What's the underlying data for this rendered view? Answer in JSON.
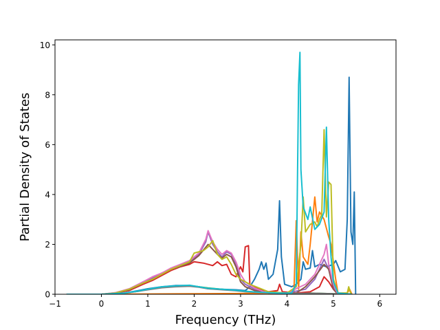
{
  "chart_data": {
    "type": "line",
    "title": "",
    "xlabel": "Frequency (THz)",
    "ylabel": "Partial Density of States",
    "xlim": [
      -1.0,
      6.35
    ],
    "ylim": [
      0,
      10.2
    ],
    "xticks": [
      -1,
      0,
      1,
      2,
      3,
      4,
      5,
      6
    ],
    "yticks": [
      0,
      2,
      4,
      6,
      8,
      10
    ],
    "xtick_labels": [
      "−1",
      "0",
      "1",
      "2",
      "3",
      "4",
      "5",
      "6"
    ],
    "ytick_labels": [
      "0",
      "2",
      "4",
      "6",
      "8",
      "10"
    ],
    "grid": false,
    "legend": "none",
    "series": [
      {
        "color": "#1f77b4",
        "points": [
          [
            -0.75,
            0
          ],
          [
            0.0,
            0
          ],
          [
            0.5,
            0.05
          ],
          [
            0.8,
            0.15
          ],
          [
            1.0,
            0.22
          ],
          [
            1.3,
            0.3
          ],
          [
            1.6,
            0.35
          ],
          [
            1.9,
            0.35
          ],
          [
            2.1,
            0.3
          ],
          [
            2.3,
            0.22
          ],
          [
            2.6,
            0.2
          ],
          [
            2.9,
            0.18
          ],
          [
            3.1,
            0.15
          ],
          [
            3.2,
            0.3
          ],
          [
            3.3,
            0.6
          ],
          [
            3.4,
            1.0
          ],
          [
            3.45,
            1.3
          ],
          [
            3.5,
            1.0
          ],
          [
            3.55,
            1.25
          ],
          [
            3.6,
            0.6
          ],
          [
            3.7,
            0.8
          ],
          [
            3.8,
            1.8
          ],
          [
            3.84,
            3.75
          ],
          [
            3.88,
            1.5
          ],
          [
            3.95,
            0.4
          ],
          [
            4.1,
            0.3
          ],
          [
            4.2,
            0.4
          ],
          [
            4.3,
            0.6
          ],
          [
            4.35,
            1.3
          ],
          [
            4.4,
            1.0
          ],
          [
            4.5,
            1.05
          ],
          [
            4.55,
            1.75
          ],
          [
            4.6,
            1.1
          ],
          [
            4.7,
            1.2
          ],
          [
            4.85,
            1.1
          ],
          [
            5.0,
            1.2
          ],
          [
            5.05,
            1.35
          ],
          [
            5.15,
            0.9
          ],
          [
            5.25,
            1.0
          ],
          [
            5.3,
            3.0
          ],
          [
            5.34,
            8.7
          ],
          [
            5.38,
            2.5
          ],
          [
            5.42,
            2.0
          ],
          [
            5.45,
            4.1
          ],
          [
            5.48,
            0
          ]
        ]
      },
      {
        "color": "#ff7f0e",
        "points": [
          [
            -0.75,
            0
          ],
          [
            0.0,
            0
          ],
          [
            1.0,
            0.01
          ],
          [
            2.0,
            0.02
          ],
          [
            3.0,
            0.03
          ],
          [
            3.8,
            0.05
          ],
          [
            4.15,
            0.1
          ],
          [
            4.2,
            2.95
          ],
          [
            4.25,
            0.2
          ],
          [
            4.3,
            2.5
          ],
          [
            4.35,
            1.5
          ],
          [
            4.45,
            1.2
          ],
          [
            4.5,
            2.0
          ],
          [
            4.6,
            3.9
          ],
          [
            4.65,
            2.9
          ],
          [
            4.7,
            3.3
          ],
          [
            4.8,
            3.0
          ],
          [
            4.9,
            2.3
          ],
          [
            4.95,
            2.0
          ],
          [
            5.05,
            0.6
          ],
          [
            5.1,
            0.05
          ],
          [
            5.3,
            0.05
          ],
          [
            5.35,
            0.2
          ],
          [
            5.4,
            0
          ]
        ]
      },
      {
        "color": "#2ca02c",
        "points": [
          [
            -0.75,
            0
          ],
          [
            0.0,
            0
          ],
          [
            0.5,
            0.05
          ],
          [
            0.8,
            0.12
          ],
          [
            1.0,
            0.2
          ],
          [
            1.3,
            0.28
          ],
          [
            1.6,
            0.32
          ],
          [
            1.9,
            0.34
          ],
          [
            2.1,
            0.3
          ],
          [
            2.3,
            0.25
          ],
          [
            2.6,
            0.2
          ],
          [
            2.9,
            0.15
          ],
          [
            3.1,
            0.12
          ],
          [
            3.4,
            0.08
          ],
          [
            3.8,
            0.05
          ],
          [
            4.2,
            0.03
          ],
          [
            4.5,
            0.05
          ],
          [
            5.0,
            0.02
          ],
          [
            5.4,
            0
          ]
        ]
      },
      {
        "color": "#d62728",
        "points": [
          [
            -0.75,
            0
          ],
          [
            0.0,
            0
          ],
          [
            0.3,
            0.05
          ],
          [
            0.6,
            0.15
          ],
          [
            0.9,
            0.4
          ],
          [
            1.1,
            0.55
          ],
          [
            1.3,
            0.75
          ],
          [
            1.5,
            0.95
          ],
          [
            1.7,
            1.1
          ],
          [
            1.9,
            1.2
          ],
          [
            2.0,
            1.3
          ],
          [
            2.2,
            1.25
          ],
          [
            2.4,
            1.15
          ],
          [
            2.5,
            1.3
          ],
          [
            2.6,
            1.15
          ],
          [
            2.7,
            1.2
          ],
          [
            2.8,
            0.8
          ],
          [
            2.9,
            0.7
          ],
          [
            3.0,
            1.1
          ],
          [
            3.05,
            0.9
          ],
          [
            3.1,
            1.9
          ],
          [
            3.17,
            1.95
          ],
          [
            3.2,
            0.4
          ],
          [
            3.4,
            0.2
          ],
          [
            3.6,
            0.1
          ],
          [
            3.8,
            0.15
          ],
          [
            3.84,
            0.4
          ],
          [
            3.9,
            0.1
          ],
          [
            4.2,
            0.05
          ],
          [
            4.5,
            0.1
          ],
          [
            4.7,
            0.3
          ],
          [
            4.8,
            0.7
          ],
          [
            4.9,
            0.5
          ],
          [
            5.0,
            0.2
          ],
          [
            5.1,
            0
          ]
        ]
      },
      {
        "color": "#9467bd",
        "points": [
          [
            -0.75,
            0
          ],
          [
            0.0,
            0
          ],
          [
            0.3,
            0.06
          ],
          [
            0.6,
            0.2
          ],
          [
            0.9,
            0.5
          ],
          [
            1.1,
            0.65
          ],
          [
            1.3,
            0.85
          ],
          [
            1.5,
            1.0
          ],
          [
            1.7,
            1.15
          ],
          [
            1.9,
            1.3
          ],
          [
            2.1,
            1.6
          ],
          [
            2.25,
            2.1
          ],
          [
            2.3,
            2.5
          ],
          [
            2.4,
            2.0
          ],
          [
            2.5,
            1.7
          ],
          [
            2.6,
            1.5
          ],
          [
            2.7,
            1.7
          ],
          [
            2.8,
            1.6
          ],
          [
            2.9,
            1.2
          ],
          [
            3.0,
            0.6
          ],
          [
            3.1,
            0.4
          ],
          [
            3.3,
            0.2
          ],
          [
            3.5,
            0.1
          ],
          [
            4.0,
            0.05
          ],
          [
            4.4,
            0.2
          ],
          [
            4.6,
            0.6
          ],
          [
            4.8,
            1.4
          ],
          [
            4.9,
            1.0
          ],
          [
            5.0,
            0.3
          ],
          [
            5.1,
            0
          ]
        ]
      },
      {
        "color": "#8c564b",
        "points": [
          [
            -0.75,
            0
          ],
          [
            0.0,
            0
          ],
          [
            0.3,
            0.05
          ],
          [
            0.6,
            0.18
          ],
          [
            0.9,
            0.45
          ],
          [
            1.1,
            0.6
          ],
          [
            1.3,
            0.8
          ],
          [
            1.5,
            1.0
          ],
          [
            1.7,
            1.12
          ],
          [
            1.9,
            1.25
          ],
          [
            2.1,
            1.55
          ],
          [
            2.3,
            2.0
          ],
          [
            2.4,
            1.8
          ],
          [
            2.5,
            1.6
          ],
          [
            2.6,
            1.45
          ],
          [
            2.7,
            1.6
          ],
          [
            2.8,
            1.5
          ],
          [
            2.9,
            1.1
          ],
          [
            3.0,
            0.5
          ],
          [
            3.1,
            0.3
          ],
          [
            3.3,
            0.15
          ],
          [
            3.6,
            0.05
          ],
          [
            4.2,
            0.05
          ],
          [
            4.4,
            0.3
          ],
          [
            4.6,
            0.7
          ],
          [
            4.8,
            1.2
          ],
          [
            4.9,
            1.0
          ],
          [
            5.0,
            0.2
          ],
          [
            5.1,
            0
          ]
        ]
      },
      {
        "color": "#e377c2",
        "points": [
          [
            -0.75,
            0
          ],
          [
            0.0,
            0
          ],
          [
            0.3,
            0.06
          ],
          [
            0.6,
            0.22
          ],
          [
            0.9,
            0.5
          ],
          [
            1.1,
            0.7
          ],
          [
            1.3,
            0.85
          ],
          [
            1.5,
            1.05
          ],
          [
            1.7,
            1.2
          ],
          [
            1.9,
            1.35
          ],
          [
            2.1,
            1.65
          ],
          [
            2.25,
            2.2
          ],
          [
            2.3,
            2.55
          ],
          [
            2.4,
            2.1
          ],
          [
            2.5,
            1.8
          ],
          [
            2.6,
            1.6
          ],
          [
            2.7,
            1.75
          ],
          [
            2.8,
            1.65
          ],
          [
            2.9,
            1.3
          ],
          [
            3.0,
            0.8
          ],
          [
            3.1,
            0.5
          ],
          [
            3.3,
            0.25
          ],
          [
            3.5,
            0.1
          ],
          [
            4.0,
            0.05
          ],
          [
            4.4,
            0.4
          ],
          [
            4.6,
            0.8
          ],
          [
            4.8,
            1.6
          ],
          [
            4.85,
            2.0
          ],
          [
            4.9,
            1.2
          ],
          [
            5.0,
            0.4
          ],
          [
            5.1,
            0
          ]
        ]
      },
      {
        "color": "#7f7f7f",
        "points": [
          [
            -0.75,
            0
          ],
          [
            0.0,
            0
          ],
          [
            0.5,
            0.04
          ],
          [
            0.8,
            0.12
          ],
          [
            1.0,
            0.18
          ],
          [
            1.3,
            0.26
          ],
          [
            1.6,
            0.3
          ],
          [
            1.9,
            0.32
          ],
          [
            2.1,
            0.28
          ],
          [
            2.3,
            0.22
          ],
          [
            2.6,
            0.18
          ],
          [
            2.9,
            0.14
          ],
          [
            3.1,
            0.1
          ],
          [
            3.4,
            0.07
          ],
          [
            3.8,
            0.05
          ],
          [
            4.2,
            0.03
          ],
          [
            4.6,
            0.04
          ],
          [
            5.0,
            0.02
          ],
          [
            5.4,
            0
          ]
        ]
      },
      {
        "color": "#bcbd22",
        "points": [
          [
            -0.75,
            0
          ],
          [
            0.0,
            0
          ],
          [
            0.3,
            0.05
          ],
          [
            0.6,
            0.2
          ],
          [
            0.9,
            0.45
          ],
          [
            1.1,
            0.6
          ],
          [
            1.3,
            0.8
          ],
          [
            1.5,
            1.0
          ],
          [
            1.7,
            1.15
          ],
          [
            1.9,
            1.3
          ],
          [
            2.0,
            1.65
          ],
          [
            2.2,
            1.75
          ],
          [
            2.3,
            1.9
          ],
          [
            2.4,
            2.15
          ],
          [
            2.5,
            1.6
          ],
          [
            2.6,
            1.4
          ],
          [
            2.7,
            1.5
          ],
          [
            2.8,
            1.2
          ],
          [
            2.9,
            0.8
          ],
          [
            3.0,
            0.6
          ],
          [
            3.1,
            0.5
          ],
          [
            3.2,
            0.4
          ],
          [
            3.4,
            0.25
          ],
          [
            3.6,
            0.1
          ],
          [
            4.0,
            0.05
          ],
          [
            4.2,
            0.3
          ],
          [
            4.3,
            2.0
          ],
          [
            4.35,
            3.9
          ],
          [
            4.4,
            2.5
          ],
          [
            4.5,
            2.8
          ],
          [
            4.6,
            2.9
          ],
          [
            4.65,
            2.7
          ],
          [
            4.7,
            3.0
          ],
          [
            4.75,
            3.2
          ],
          [
            4.8,
            6.6
          ],
          [
            4.85,
            3.1
          ],
          [
            4.9,
            4.5
          ],
          [
            4.95,
            4.4
          ],
          [
            5.0,
            0.6
          ],
          [
            5.1,
            0.05
          ],
          [
            5.3,
            0.05
          ],
          [
            5.33,
            0.3
          ],
          [
            5.38,
            0
          ]
        ]
      },
      {
        "color": "#17becf",
        "points": [
          [
            -0.75,
            0
          ],
          [
            0.0,
            0
          ],
          [
            0.5,
            0.05
          ],
          [
            0.8,
            0.13
          ],
          [
            1.0,
            0.2
          ],
          [
            1.3,
            0.3
          ],
          [
            1.6,
            0.34
          ],
          [
            1.9,
            0.36
          ],
          [
            2.1,
            0.3
          ],
          [
            2.3,
            0.24
          ],
          [
            2.6,
            0.2
          ],
          [
            2.9,
            0.16
          ],
          [
            3.1,
            0.12
          ],
          [
            3.4,
            0.08
          ],
          [
            3.8,
            0.05
          ],
          [
            4.1,
            0.05
          ],
          [
            4.2,
            0.4
          ],
          [
            4.25,
            8.4
          ],
          [
            4.28,
            9.7
          ],
          [
            4.3,
            5.0
          ],
          [
            4.35,
            3.5
          ],
          [
            4.45,
            3.0
          ],
          [
            4.5,
            3.5
          ],
          [
            4.6,
            2.6
          ],
          [
            4.7,
            2.8
          ],
          [
            4.8,
            3.3
          ],
          [
            4.85,
            6.7
          ],
          [
            4.9,
            3.0
          ],
          [
            4.95,
            1.5
          ],
          [
            5.0,
            0.5
          ],
          [
            5.1,
            0.05
          ],
          [
            5.4,
            0
          ]
        ]
      }
    ]
  }
}
